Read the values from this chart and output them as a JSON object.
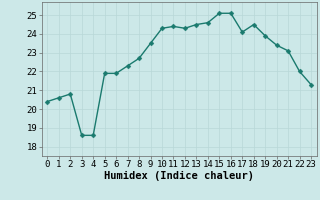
{
  "x": [
    0,
    1,
    2,
    3,
    4,
    5,
    6,
    7,
    8,
    9,
    10,
    11,
    12,
    13,
    14,
    15,
    16,
    17,
    18,
    19,
    20,
    21,
    22,
    23
  ],
  "y": [
    20.4,
    20.6,
    20.8,
    18.6,
    18.6,
    21.9,
    21.9,
    22.3,
    22.7,
    23.5,
    24.3,
    24.4,
    24.3,
    24.5,
    24.6,
    25.1,
    25.1,
    24.1,
    24.5,
    23.9,
    23.4,
    23.1,
    22.0,
    21.3
  ],
  "line_color": "#1a7a6e",
  "marker_color": "#1a7a6e",
  "bg_color": "#cce8e8",
  "grid_color": "#b8d8d8",
  "xlabel": "Humidex (Indice chaleur)",
  "xlim": [
    -0.5,
    23.5
  ],
  "ylim": [
    17.5,
    25.7
  ],
  "yticks": [
    18,
    19,
    20,
    21,
    22,
    23,
    24,
    25
  ],
  "xticks": [
    0,
    1,
    2,
    3,
    4,
    5,
    6,
    7,
    8,
    9,
    10,
    11,
    12,
    13,
    14,
    15,
    16,
    17,
    18,
    19,
    20,
    21,
    22,
    23
  ],
  "xtick_labels": [
    "0",
    "1",
    "2",
    "3",
    "4",
    "5",
    "6",
    "7",
    "8",
    "9",
    "10",
    "11",
    "12",
    "13",
    "14",
    "15",
    "16",
    "17",
    "18",
    "19",
    "20",
    "21",
    "22",
    "23"
  ],
  "marker_size": 2.5,
  "line_width": 1.0,
  "font_size": 6.5,
  "xlabel_fontsize": 7.5
}
